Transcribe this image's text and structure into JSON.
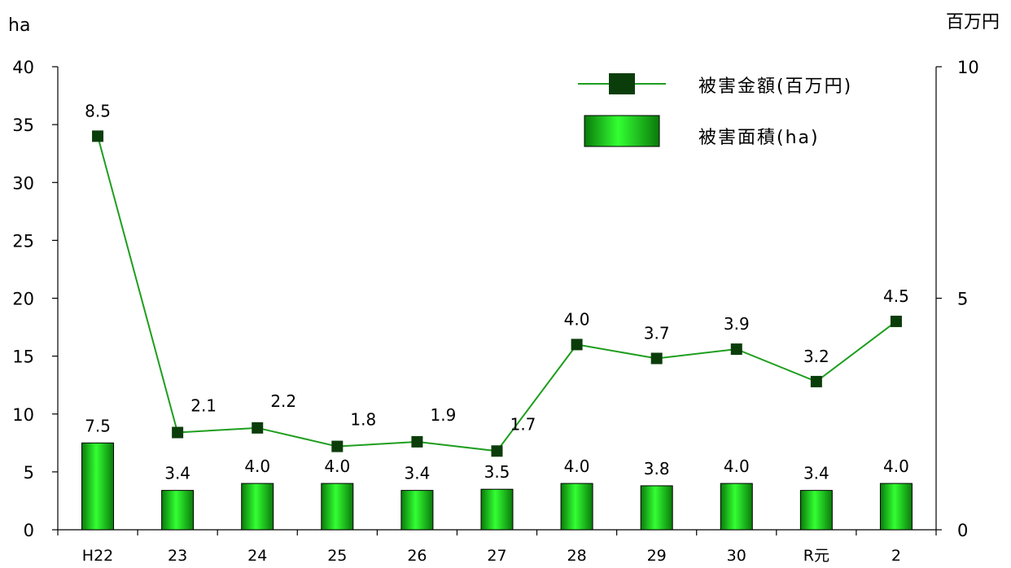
{
  "chart_data": {
    "type": "bar",
    "categories": [
      "H22",
      "23",
      "24",
      "25",
      "26",
      "27",
      "28",
      "29",
      "30",
      "R元",
      "2"
    ],
    "series": [
      {
        "name": "被害面積(ha)",
        "type": "bar",
        "axis": "left",
        "values": [
          7.5,
          3.4,
          4.0,
          4.0,
          3.4,
          3.5,
          4.0,
          3.8,
          4.0,
          3.4,
          4.0
        ],
        "labels": [
          "7.5",
          "3.4",
          "4.0",
          "4.0",
          "3.4",
          "3.5",
          "4.0",
          "3.8",
          "4.0",
          "3.4",
          "4.0"
        ],
        "color": "#22cc22"
      },
      {
        "name": "被害金額(百万円)",
        "type": "line",
        "axis": "right",
        "values": [
          8.5,
          2.1,
          2.2,
          1.8,
          1.9,
          1.7,
          4.0,
          3.7,
          3.9,
          3.2,
          4.5
        ],
        "labels": [
          "8.5",
          "2.1",
          "2.2",
          "1.8",
          "1.9",
          "1.7",
          "4.0",
          "3.7",
          "3.9",
          "3.2",
          "4.5"
        ],
        "line_color": "#1e9e1e",
        "marker_color": "#0b3d0b"
      }
    ],
    "y_left": {
      "label": "ha",
      "ylim": [
        0,
        40
      ],
      "ticks": [
        0,
        5,
        10,
        15,
        20,
        25,
        30,
        35,
        40
      ],
      "tick_labels": [
        "0",
        "5",
        "10",
        "15",
        "20",
        "25",
        "30",
        "35",
        "40"
      ]
    },
    "y_right": {
      "label": "百万円",
      "ylim": [
        0,
        10
      ],
      "ticks": [
        0,
        5,
        10
      ],
      "tick_labels": [
        "0",
        "5",
        "10"
      ]
    },
    "legend": {
      "position": "top-right",
      "entries": [
        "被害金額(百万円)",
        "被害面積(ha)"
      ]
    },
    "grid": false
  }
}
